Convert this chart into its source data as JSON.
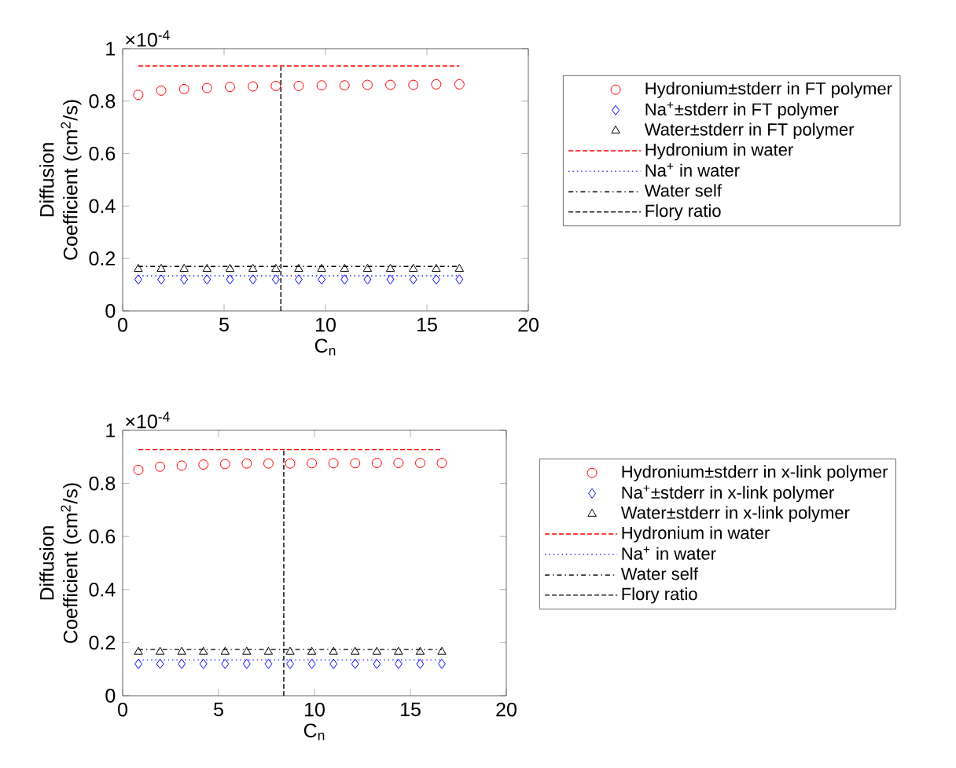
{
  "chart_data": [
    {
      "type": "scatter",
      "xlabel": "C$_{n}$",
      "ylabel": "Diffusion Coefficient (cm$^{2}$/s)",
      "annotations": [
        "×10$^{-4}$"
      ],
      "x": [
        0.77,
        1.9,
        3.03,
        4.16,
        5.29,
        6.42,
        7.55,
        8.68,
        9.81,
        10.94,
        12.07,
        13.2,
        14.33,
        15.46,
        16.6
      ],
      "series": [
        {
          "name": "Hydronium±stderr in FT polymer",
          "color": "#ff0000",
          "marker": "circle",
          "values": [
            0.824,
            0.84,
            0.846,
            0.85,
            0.854,
            0.856,
            0.858,
            0.858,
            0.86,
            0.86,
            0.862,
            0.862,
            0.862,
            0.864,
            0.864
          ]
        },
        {
          "name": "Na$^{+}$±stderr in FT polymer",
          "color": "#0000ff",
          "marker": "diamond",
          "values": [
            0.12,
            0.12,
            0.12,
            0.12,
            0.12,
            0.12,
            0.12,
            0.12,
            0.12,
            0.12,
            0.12,
            0.12,
            0.12,
            0.12,
            0.12
          ]
        },
        {
          "name": "Water±stderr in FT polymer",
          "color": "#000000",
          "marker": "triangle",
          "values": [
            0.16,
            0.16,
            0.16,
            0.16,
            0.16,
            0.16,
            0.16,
            0.16,
            0.16,
            0.16,
            0.16,
            0.16,
            0.16,
            0.16,
            0.16
          ]
        },
        {
          "name": "Hydronium in water",
          "type": "line",
          "color": "#ff0000",
          "line_style": "dashed",
          "x": [
            0.77,
            16.6
          ],
          "values": [
            0.934,
            0.934
          ]
        },
        {
          "name": "Na$^{+}$ in water",
          "type": "line",
          "color": "#0000ff",
          "line_style": "dotted",
          "x": [
            0.77,
            16.6
          ],
          "values": [
            0.134,
            0.134
          ]
        },
        {
          "name": "Water self",
          "type": "line",
          "color": "#000000",
          "line_style": "dashdot",
          "x": [
            0.77,
            16.6
          ],
          "values": [
            0.17,
            0.17
          ]
        },
        {
          "name": "Flory ratio",
          "type": "line",
          "color": "#000000",
          "line_style": "dashed",
          "x": [
            7.8,
            7.8
          ],
          "values": [
            0,
            0.93
          ]
        }
      ],
      "xlim": [
        0,
        20
      ],
      "ylim": [
        0,
        1
      ],
      "xticks": [
        0,
        5,
        10,
        15,
        20
      ],
      "yticks": [
        0,
        0.2,
        0.4,
        0.6,
        0.8,
        1
      ],
      "legend": "right"
    },
    {
      "type": "scatter",
      "xlabel": "C$_{n}$",
      "ylabel": "Diffusion Coefficient (cm$^{2}$/s)",
      "annotations": [
        "×10$^{-4}$"
      ],
      "x": [
        0.82,
        1.95,
        3.08,
        4.21,
        5.34,
        6.47,
        7.6,
        8.73,
        9.86,
        10.99,
        12.12,
        13.25,
        14.38,
        15.51,
        16.64
      ],
      "series": [
        {
          "name": "Hydronium±stderr in x-link polymer",
          "color": "#ff0000",
          "marker": "circle",
          "values": [
            0.851,
            0.863,
            0.867,
            0.871,
            0.873,
            0.875,
            0.875,
            0.875,
            0.876,
            0.876,
            0.876,
            0.877,
            0.877,
            0.877,
            0.877
          ]
        },
        {
          "name": "Na$^{+}$±stderr in x-link polymer",
          "color": "#0000ff",
          "marker": "diamond",
          "values": [
            0.12,
            0.12,
            0.12,
            0.12,
            0.12,
            0.12,
            0.12,
            0.12,
            0.12,
            0.12,
            0.12,
            0.12,
            0.12,
            0.12,
            0.12
          ]
        },
        {
          "name": "Water±stderr in x-link polymer",
          "color": "#000000",
          "marker": "triangle",
          "values": [
            0.165,
            0.165,
            0.165,
            0.165,
            0.165,
            0.165,
            0.165,
            0.165,
            0.165,
            0.165,
            0.165,
            0.165,
            0.165,
            0.165,
            0.165
          ]
        },
        {
          "name": "Hydronium in water",
          "type": "line",
          "color": "#ff0000",
          "line_style": "dashed",
          "x": [
            0.82,
            16.64
          ],
          "values": [
            0.927,
            0.927
          ]
        },
        {
          "name": "Na$^{+}$ in water",
          "type": "line",
          "color": "#0000ff",
          "line_style": "dotted",
          "x": [
            0.82,
            16.64
          ],
          "values": [
            0.135,
            0.135
          ]
        },
        {
          "name": "Water self",
          "type": "line",
          "color": "#000000",
          "line_style": "dashdot",
          "x": [
            0.82,
            16.64
          ],
          "values": [
            0.174,
            0.174
          ]
        },
        {
          "name": "Flory ratio",
          "type": "line",
          "color": "#000000",
          "line_style": "dashed",
          "x": [
            8.4,
            8.4
          ],
          "values": [
            0,
            0.93
          ]
        }
      ],
      "xlim": [
        0,
        20
      ],
      "ylim": [
        0,
        1
      ],
      "xticks": [
        0,
        5,
        10,
        15,
        20
      ],
      "yticks": [
        0,
        0.2,
        0.4,
        0.6,
        0.8,
        1
      ],
      "legend": "right"
    }
  ]
}
